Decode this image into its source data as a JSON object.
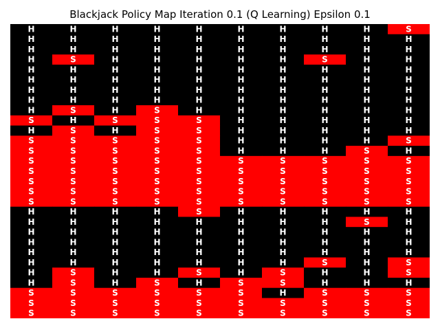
{
  "title": "Blackjack Policy Map Iteration 0.1 (Q Learning) Epsilon 0.1",
  "legend": {
    "H": "#000000",
    "S": "#ff0000"
  },
  "label_color": "#ffffff",
  "chart_data": {
    "type": "heatmap",
    "title": "Blackjack Policy Map Iteration 0.1 (Q Learning) Epsilon 0.1",
    "xlabel": "",
    "ylabel": "",
    "grid": false,
    "colors": {
      "H": "#000000",
      "S": "#ff0000"
    },
    "rows": [
      [
        "H",
        "H",
        "H",
        "H",
        "H",
        "H",
        "H",
        "H",
        "H",
        "S"
      ],
      [
        "H",
        "H",
        "H",
        "H",
        "H",
        "H",
        "H",
        "H",
        "H",
        "H"
      ],
      [
        "H",
        "H",
        "H",
        "H",
        "H",
        "H",
        "H",
        "H",
        "H",
        "H"
      ],
      [
        "H",
        "S",
        "H",
        "H",
        "H",
        "H",
        "H",
        "S",
        "H",
        "H"
      ],
      [
        "H",
        "H",
        "H",
        "H",
        "H",
        "H",
        "H",
        "H",
        "H",
        "H"
      ],
      [
        "H",
        "H",
        "H",
        "H",
        "H",
        "H",
        "H",
        "H",
        "H",
        "H"
      ],
      [
        "H",
        "H",
        "H",
        "H",
        "H",
        "H",
        "H",
        "H",
        "H",
        "H"
      ],
      [
        "H",
        "H",
        "H",
        "H",
        "H",
        "H",
        "H",
        "H",
        "H",
        "H"
      ],
      [
        "H",
        "S",
        "H",
        "S",
        "H",
        "H",
        "H",
        "H",
        "H",
        "H"
      ],
      [
        "S",
        "H",
        "S",
        "S",
        "S",
        "H",
        "H",
        "H",
        "H",
        "H"
      ],
      [
        "H",
        "S",
        "H",
        "S",
        "S",
        "H",
        "H",
        "H",
        "H",
        "H"
      ],
      [
        "S",
        "S",
        "S",
        "S",
        "S",
        "H",
        "H",
        "H",
        "H",
        "S"
      ],
      [
        "S",
        "S",
        "S",
        "S",
        "S",
        "H",
        "H",
        "H",
        "S",
        "H"
      ],
      [
        "S",
        "S",
        "S",
        "S",
        "S",
        "S",
        "S",
        "S",
        "S",
        "S"
      ],
      [
        "S",
        "S",
        "S",
        "S",
        "S",
        "S",
        "S",
        "S",
        "S",
        "S"
      ],
      [
        "S",
        "S",
        "S",
        "S",
        "S",
        "S",
        "S",
        "S",
        "S",
        "S"
      ],
      [
        "S",
        "S",
        "S",
        "S",
        "S",
        "S",
        "S",
        "S",
        "S",
        "S"
      ],
      [
        "S",
        "S",
        "S",
        "S",
        "S",
        "S",
        "S",
        "S",
        "S",
        "S"
      ],
      [
        "H",
        "H",
        "H",
        "H",
        "S",
        "H",
        "H",
        "H",
        "H",
        "H"
      ],
      [
        "H",
        "H",
        "H",
        "H",
        "H",
        "H",
        "H",
        "H",
        "S",
        "H"
      ],
      [
        "H",
        "H",
        "H",
        "H",
        "H",
        "H",
        "H",
        "H",
        "H",
        "H"
      ],
      [
        "H",
        "H",
        "H",
        "H",
        "H",
        "H",
        "H",
        "H",
        "H",
        "H"
      ],
      [
        "H",
        "H",
        "H",
        "H",
        "H",
        "H",
        "H",
        "H",
        "H",
        "H"
      ],
      [
        "H",
        "H",
        "H",
        "H",
        "H",
        "H",
        "H",
        "S",
        "H",
        "S"
      ],
      [
        "H",
        "S",
        "H",
        "H",
        "S",
        "H",
        "S",
        "H",
        "H",
        "S"
      ],
      [
        "H",
        "S",
        "H",
        "S",
        "H",
        "S",
        "S",
        "H",
        "H",
        "H"
      ],
      [
        "S",
        "S",
        "S",
        "S",
        "S",
        "S",
        "H",
        "S",
        "S",
        "S"
      ],
      [
        "S",
        "S",
        "S",
        "S",
        "S",
        "S",
        "S",
        "S",
        "S",
        "S"
      ],
      [
        "S",
        "S",
        "S",
        "S",
        "S",
        "S",
        "S",
        "S",
        "S",
        "S"
      ]
    ]
  }
}
